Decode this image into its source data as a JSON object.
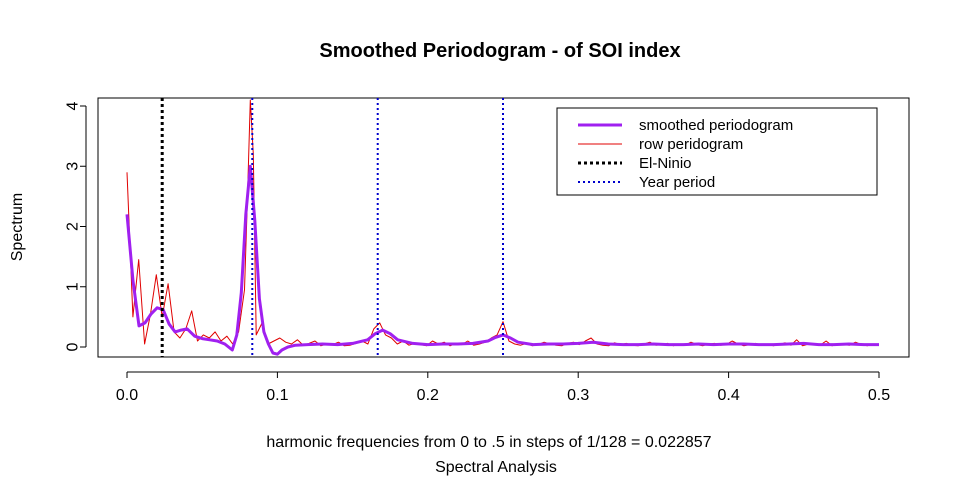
{
  "chart_data": {
    "type": "line",
    "title": "Smoothed Periodogram -  of SOI index",
    "xlabel": "harmonic frequencies from 0 to .5 in steps of 1/128 = 0.022857",
    "sublabel": "Spectral Analysis",
    "ylabel": "Spectrum",
    "xlim": [
      0,
      0.5
    ],
    "ylim": [
      0,
      4
    ],
    "xticks": [
      "0.0",
      "0.1",
      "0.2",
      "0.3",
      "0.4",
      "0.5"
    ],
    "yticks": [
      "0",
      "1",
      "2",
      "3",
      "4"
    ],
    "legend_position": "top-right",
    "series": [
      {
        "name": "smoothed periodogram",
        "color": "#a020f0",
        "style": "solid-thick",
        "x": [
          0.0,
          0.004,
          0.008,
          0.012,
          0.016,
          0.02,
          0.024,
          0.028,
          0.032,
          0.036,
          0.04,
          0.045,
          0.05,
          0.055,
          0.06,
          0.065,
          0.07,
          0.073,
          0.076,
          0.079,
          0.082,
          0.085,
          0.088,
          0.091,
          0.094,
          0.097,
          0.1,
          0.103,
          0.107,
          0.112,
          0.12,
          0.13,
          0.14,
          0.15,
          0.16,
          0.165,
          0.17,
          0.175,
          0.18,
          0.19,
          0.2,
          0.21,
          0.22,
          0.23,
          0.24,
          0.245,
          0.25,
          0.255,
          0.26,
          0.27,
          0.28,
          0.29,
          0.3,
          0.31,
          0.32,
          0.33,
          0.34,
          0.35,
          0.36,
          0.37,
          0.38,
          0.39,
          0.4,
          0.41,
          0.42,
          0.43,
          0.44,
          0.45,
          0.46,
          0.47,
          0.48,
          0.49,
          0.5
        ],
        "y": [
          2.2,
          1.1,
          0.35,
          0.4,
          0.55,
          0.65,
          0.62,
          0.38,
          0.25,
          0.28,
          0.3,
          0.18,
          0.14,
          0.12,
          0.1,
          0.05,
          -0.05,
          0.2,
          0.9,
          2.2,
          3.0,
          2.1,
          0.8,
          0.25,
          0.05,
          -0.1,
          -0.12,
          -0.05,
          0.0,
          0.03,
          0.04,
          0.05,
          0.04,
          0.06,
          0.12,
          0.22,
          0.28,
          0.22,
          0.12,
          0.06,
          0.04,
          0.05,
          0.05,
          0.06,
          0.1,
          0.16,
          0.2,
          0.15,
          0.08,
          0.04,
          0.05,
          0.05,
          0.06,
          0.08,
          0.05,
          0.04,
          0.04,
          0.05,
          0.04,
          0.04,
          0.05,
          0.04,
          0.05,
          0.05,
          0.04,
          0.04,
          0.05,
          0.06,
          0.04,
          0.04,
          0.05,
          0.04,
          0.04
        ]
      },
      {
        "name": "row peridogram",
        "color": "#e00000",
        "style": "solid-thin",
        "x": [
          0.0,
          0.0039,
          0.0078,
          0.0117,
          0.0156,
          0.0195,
          0.0234,
          0.0273,
          0.0313,
          0.0352,
          0.0391,
          0.043,
          0.0469,
          0.0508,
          0.0547,
          0.0586,
          0.0625,
          0.0664,
          0.0703,
          0.0742,
          0.0781,
          0.0801,
          0.082,
          0.084,
          0.0859,
          0.0898,
          0.0938,
          0.0977,
          0.1016,
          0.1055,
          0.1094,
          0.1133,
          0.1172,
          0.1211,
          0.125,
          0.1289,
          0.1328,
          0.1367,
          0.1406,
          0.1445,
          0.1484,
          0.1523,
          0.1563,
          0.1602,
          0.1641,
          0.168,
          0.1719,
          0.1758,
          0.1797,
          0.1836,
          0.1875,
          0.1914,
          0.1953,
          0.1992,
          0.2031,
          0.207,
          0.2109,
          0.2148,
          0.2188,
          0.2227,
          0.2266,
          0.2305,
          0.2344,
          0.2383,
          0.2422,
          0.2461,
          0.25,
          0.2539,
          0.2578,
          0.2617,
          0.2656,
          0.2695,
          0.2734,
          0.2773,
          0.2813,
          0.2852,
          0.2891,
          0.293,
          0.2969,
          0.3008,
          0.3047,
          0.3086,
          0.3125,
          0.3164,
          0.3203,
          0.3242,
          0.3281,
          0.332,
          0.3359,
          0.3398,
          0.3438,
          0.3477,
          0.3516,
          0.3555,
          0.3594,
          0.3633,
          0.3672,
          0.3711,
          0.375,
          0.3789,
          0.3828,
          0.3867,
          0.3906,
          0.3945,
          0.3984,
          0.4023,
          0.4063,
          0.4102,
          0.4141,
          0.418,
          0.4219,
          0.4258,
          0.4297,
          0.4336,
          0.4375,
          0.4414,
          0.4453,
          0.4492,
          0.4531,
          0.457,
          0.4609,
          0.4648,
          0.4688,
          0.4727,
          0.4766,
          0.4805,
          0.4844,
          0.4883,
          0.4922,
          0.4961,
          0.5
        ],
        "y": [
          2.9,
          0.5,
          1.45,
          0.05,
          0.55,
          1.2,
          0.5,
          1.05,
          0.25,
          0.15,
          0.3,
          0.6,
          0.1,
          0.2,
          0.15,
          0.25,
          0.1,
          0.18,
          0.05,
          0.25,
          0.95,
          2.5,
          4.1,
          3.2,
          0.2,
          0.4,
          0.05,
          0.1,
          0.15,
          0.08,
          0.05,
          0.12,
          0.03,
          0.06,
          0.1,
          0.02,
          0.05,
          0.04,
          0.08,
          0.02,
          0.03,
          0.06,
          0.1,
          0.05,
          0.3,
          0.4,
          0.2,
          0.15,
          0.05,
          0.1,
          0.03,
          0.06,
          0.04,
          0.02,
          0.1,
          0.05,
          0.08,
          0.02,
          0.06,
          0.04,
          0.1,
          0.03,
          0.05,
          0.08,
          0.15,
          0.2,
          0.42,
          0.1,
          0.05,
          0.03,
          0.06,
          0.02,
          0.04,
          0.08,
          0.05,
          0.03,
          0.02,
          0.06,
          0.08,
          0.04,
          0.1,
          0.15,
          0.05,
          0.03,
          0.02,
          0.07,
          0.04,
          0.06,
          0.03,
          0.02,
          0.05,
          0.08,
          0.03,
          0.04,
          0.06,
          0.02,
          0.05,
          0.03,
          0.08,
          0.04,
          0.02,
          0.05,
          0.06,
          0.03,
          0.04,
          0.1,
          0.05,
          0.02,
          0.04,
          0.06,
          0.03,
          0.05,
          0.02,
          0.04,
          0.07,
          0.03,
          0.12,
          0.02,
          0.05,
          0.04,
          0.03,
          0.1,
          0.02,
          0.05,
          0.04,
          0.03,
          0.08,
          0.04,
          0.02,
          0.05,
          0.03
        ]
      }
    ],
    "reference_lines": [
      {
        "name": "El-Ninio",
        "x": 0.0234,
        "color": "#000000",
        "style": "dashed-thick"
      },
      {
        "name": "Year period",
        "x": 0.0833,
        "color": "#0000cc",
        "style": "dotted"
      },
      {
        "name": "Year period",
        "x": 0.1667,
        "color": "#0000cc",
        "style": "dotted"
      },
      {
        "name": "Year period",
        "x": 0.25,
        "color": "#0000cc",
        "style": "dotted"
      }
    ],
    "legend": [
      {
        "label": "smoothed periodogram",
        "color": "#a020f0",
        "style": "solid-thick"
      },
      {
        "label": "row peridogram",
        "color": "#e00000",
        "style": "solid-thin"
      },
      {
        "label": "El-Ninio",
        "color": "#000000",
        "style": "dashed-thick"
      },
      {
        "label": "Year period",
        "color": "#0000cc",
        "style": "dotted"
      }
    ]
  }
}
